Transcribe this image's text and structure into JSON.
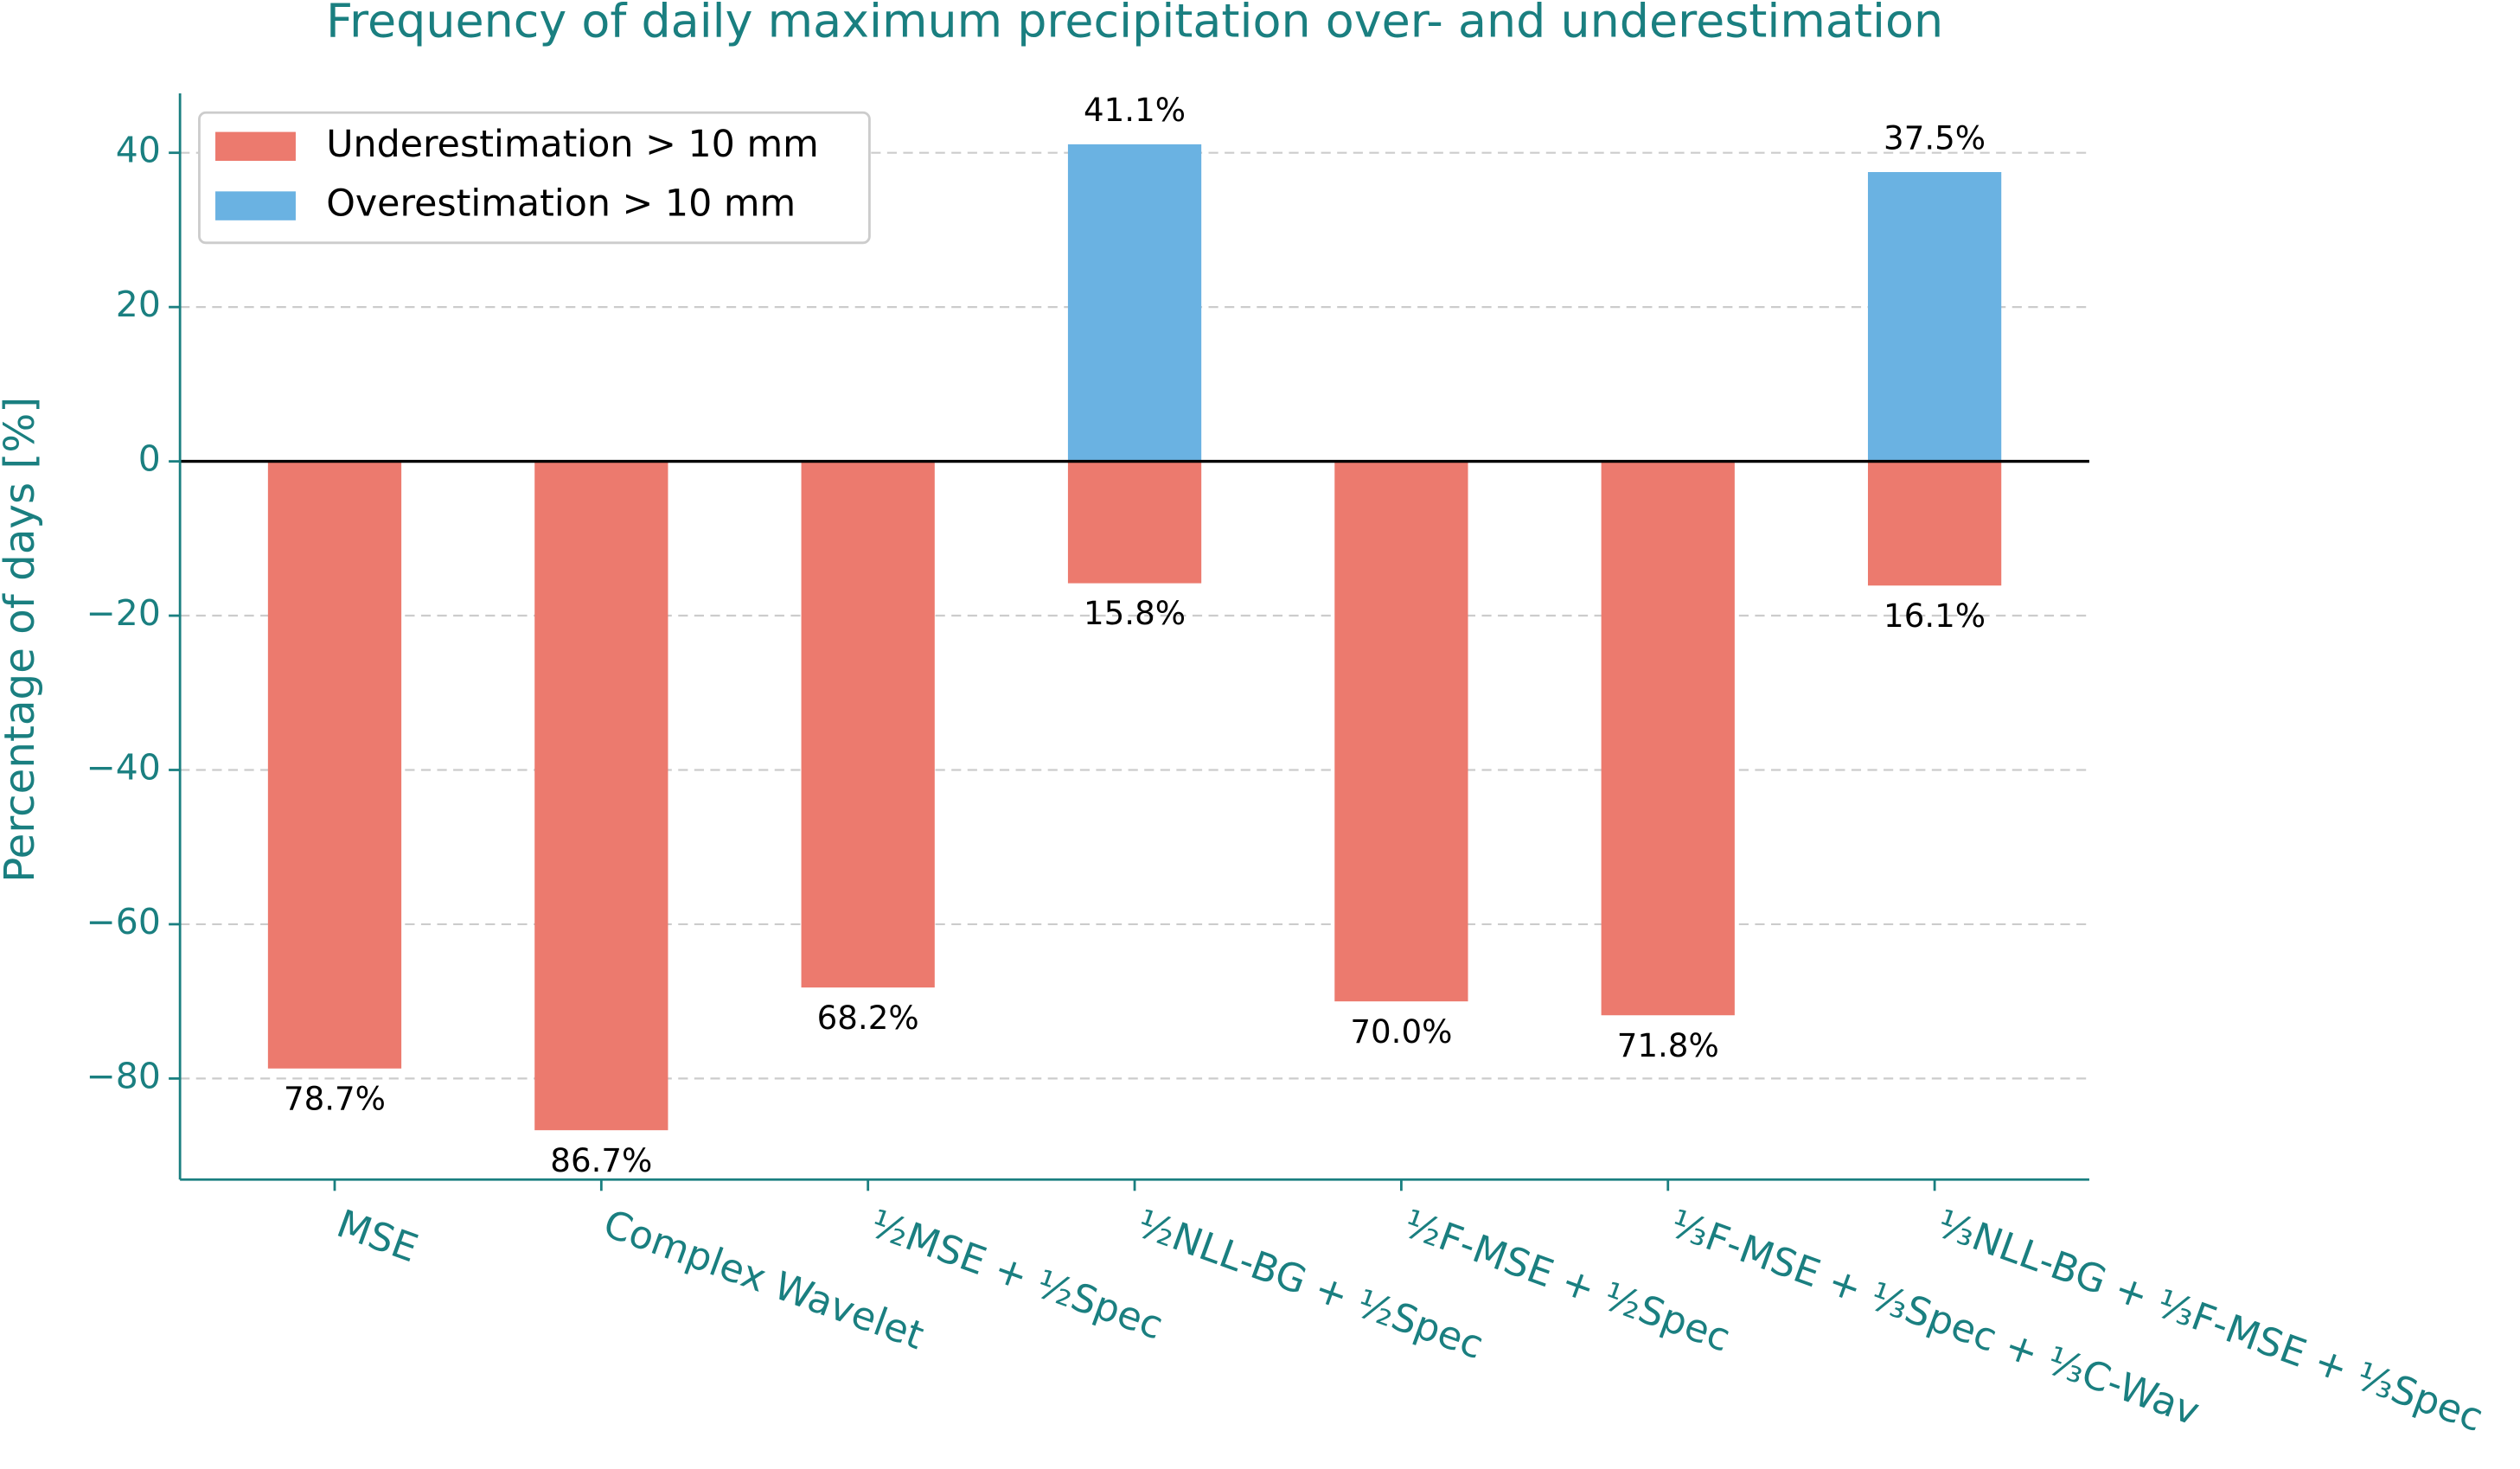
{
  "chart_data": {
    "type": "bar",
    "title": "Frequency of daily maximum precipitation over- and underestimation",
    "y_label": "Percentage of days [%]",
    "categories": [
      "MSE",
      "Complex Wavelet",
      "½MSE + ½Spec",
      "½NLL-BG + ½Spec",
      "½F-MSE + ½Spec",
      "⅓F-MSE + ⅓Spec + ⅓C-Wav",
      "⅓NLL-BG + ⅓F-MSE + ⅓Spec"
    ],
    "series": [
      {
        "name": "Underestimation > 10 mm",
        "color": "#ec7a6e",
        "values": [
          -78.7,
          -86.7,
          -68.2,
          -15.8,
          -70.0,
          -71.8,
          -16.1
        ],
        "value_labels": [
          "78.7%",
          "86.7%",
          "68.2%",
          "15.8%",
          "70.0%",
          "71.8%",
          "16.1%"
        ]
      },
      {
        "name": "Overestimation > 10 mm",
        "color": "#6ab2e2",
        "values": [
          null,
          null,
          null,
          41.1,
          null,
          null,
          37.5
        ],
        "value_labels": [
          null,
          null,
          null,
          "41.1%",
          null,
          null,
          "37.5%"
        ]
      }
    ],
    "ylim": [
      -93.1,
      47.7
    ],
    "yticks": [
      {
        "value": -80,
        "label": "−80"
      },
      {
        "value": -60,
        "label": "−60"
      },
      {
        "value": -40,
        "label": "−40"
      },
      {
        "value": -20,
        "label": "−20"
      },
      0,
      20,
      40
    ],
    "grid": true,
    "legend": "upper left"
  }
}
